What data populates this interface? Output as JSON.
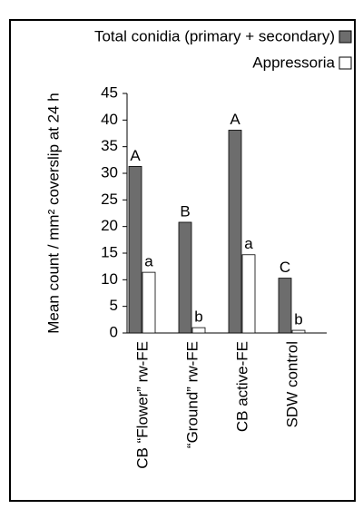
{
  "chart_data": {
    "type": "bar",
    "ylabel": "Mean count / mm² coverslip at 24 h",
    "categories": [
      "CB “Flower” rw-FE",
      "“Ground” rw-FE",
      "CB active-FE",
      "SDW control"
    ],
    "series": [
      {
        "name": "Total conidia (primary + secondary)",
        "color": "#6d6d6d",
        "values": [
          31.3,
          20.8,
          38.1,
          10.3
        ],
        "labels": [
          "A",
          "B",
          "A",
          "C"
        ]
      },
      {
        "name": "Appressoria",
        "color": "#ffffff",
        "values": [
          11.4,
          1.0,
          14.7,
          0.5
        ],
        "labels": [
          "a",
          "b",
          "a",
          "b"
        ]
      }
    ],
    "ylim": [
      0,
      45
    ],
    "yticks": [
      0,
      5,
      10,
      15,
      20,
      25,
      30,
      35,
      40,
      45
    ],
    "legend": "top-right"
  }
}
